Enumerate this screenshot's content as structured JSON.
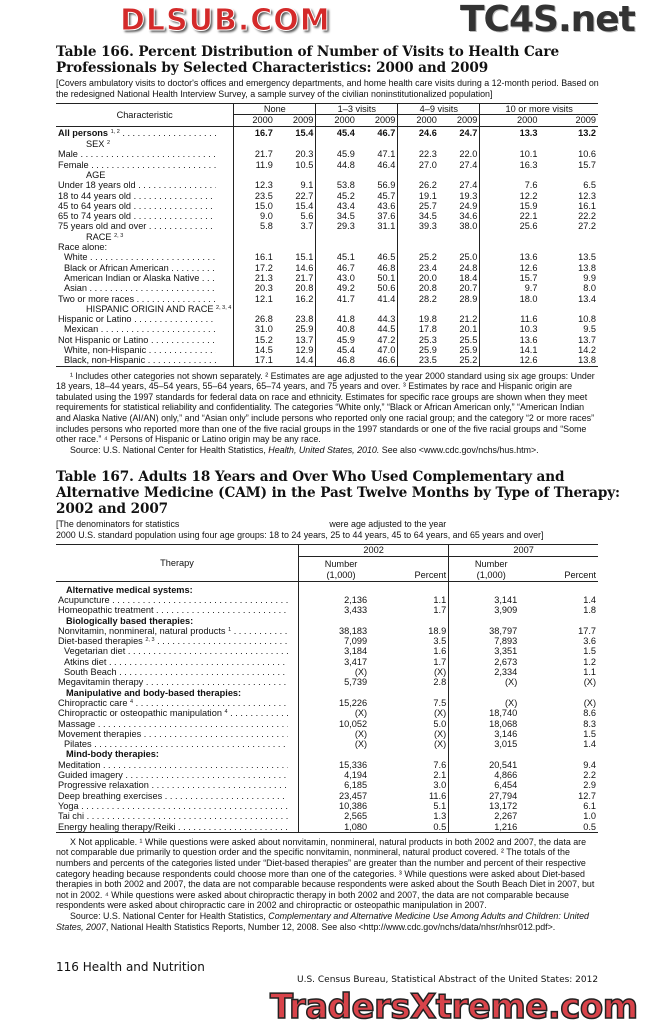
{
  "watermarks": {
    "top": "TC4S.net",
    "middle": "DLSUB.COM",
    "bottom": "TradersXtreme.com"
  },
  "table166": {
    "title_line1": "Table 166. Percent Distribution of Number of Visits to Health Care",
    "title_line2": "Professionals by Selected Characteristics: 2000 and 2009",
    "intro": "[Covers ambulatory visits to doctor's offices and emergency departments, and home health care visits during a 12-month period. Based on the redesigned National Health Interview Survey, a sample survey of the civilian noninstitutionalized population]",
    "header": {
      "characteristic": "Characteristic",
      "groups": [
        "None",
        "1–3 visits",
        "4–9 visits",
        "10 or more visits"
      ],
      "years": [
        "2000",
        "2009"
      ]
    },
    "rows": [
      {
        "label": "All persons",
        "sup": "1, 2",
        "bold": true,
        "values": [
          "16.7",
          "15.4",
          "45.4",
          "46.7",
          "24.6",
          "24.7",
          "13.3",
          "13.2"
        ]
      },
      {
        "section": "SEX",
        "sup": "2"
      },
      {
        "label": "Male",
        "values": [
          "21.7",
          "20.3",
          "45.9",
          "47.1",
          "22.3",
          "22.0",
          "10.1",
          "10.6"
        ]
      },
      {
        "label": "Female",
        "values": [
          "11.9",
          "10.5",
          "44.8",
          "46.4",
          "27.0",
          "27.4",
          "16.3",
          "15.7"
        ]
      },
      {
        "section": "AGE"
      },
      {
        "label": "Under 18 years old",
        "values": [
          "12.3",
          "9.1",
          "53.8",
          "56.9",
          "26.2",
          "27.4",
          "7.6",
          "6.5"
        ]
      },
      {
        "label": "18 to 44 years old",
        "values": [
          "23.5",
          "22.7",
          "45.2",
          "45.7",
          "19.1",
          "19.3",
          "12.2",
          "12.3"
        ]
      },
      {
        "label": "45 to 64 years old",
        "values": [
          "15.0",
          "15.4",
          "43.4",
          "43.6",
          "25.7",
          "24.9",
          "15.9",
          "16.1"
        ]
      },
      {
        "label": "65 to 74 years old",
        "values": [
          "9.0",
          "5.6",
          "34.5",
          "37.6",
          "34.5",
          "34.6",
          "22.1",
          "22.2"
        ]
      },
      {
        "label": "75 years old and over",
        "values": [
          "5.8",
          "3.7",
          "29.3",
          "31.1",
          "39.3",
          "38.0",
          "25.6",
          "27.2"
        ]
      },
      {
        "section": "RACE",
        "sup": "2, 3"
      },
      {
        "label": "Race alone:",
        "nodots": true
      },
      {
        "label": "White",
        "indent": true,
        "values": [
          "16.1",
          "15.1",
          "45.1",
          "46.5",
          "25.2",
          "25.0",
          "13.6",
          "13.5"
        ]
      },
      {
        "label": "Black or African American",
        "indent": true,
        "values": [
          "17.2",
          "14.6",
          "46.7",
          "46.8",
          "23.4",
          "24.8",
          "12.6",
          "13.8"
        ]
      },
      {
        "label": "American Indian or Alaska Native",
        "indent": true,
        "values": [
          "21.3",
          "21.7",
          "43.0",
          "50.1",
          "20.0",
          "18.4",
          "15.7",
          "9.9"
        ]
      },
      {
        "label": "Asian",
        "indent": true,
        "values": [
          "20.3",
          "20.8",
          "49.2",
          "50.6",
          "20.8",
          "20.7",
          "9.7",
          "8.0"
        ]
      },
      {
        "label": "Two or more races",
        "values": [
          "12.1",
          "16.2",
          "41.7",
          "41.4",
          "28.2",
          "28.9",
          "18.0",
          "13.4"
        ]
      },
      {
        "section": "HISPANIC ORIGIN AND RACE",
        "sup": "2, 3, 4"
      },
      {
        "label": "Hispanic or Latino",
        "values": [
          "26.8",
          "23.8",
          "41.8",
          "44.3",
          "19.8",
          "21.2",
          "11.6",
          "10.8"
        ]
      },
      {
        "label": "Mexican",
        "indent": true,
        "values": [
          "31.0",
          "25.9",
          "40.8",
          "44.5",
          "17.8",
          "20.1",
          "10.3",
          "9.5"
        ]
      },
      {
        "label": "Not Hispanic or Latino",
        "values": [
          "15.2",
          "13.7",
          "45.9",
          "47.2",
          "25.3",
          "25.5",
          "13.6",
          "13.7"
        ]
      },
      {
        "label": "White, non-Hispanic",
        "indent": true,
        "values": [
          "14.5",
          "12.9",
          "45.4",
          "47.0",
          "25.9",
          "25.9",
          "14.1",
          "14.2"
        ]
      },
      {
        "label": "Black, non-Hispanic",
        "indent": true,
        "values": [
          "17.1",
          "14.4",
          "46.8",
          "46.6",
          "23.5",
          "25.2",
          "12.6",
          "13.8"
        ]
      }
    ],
    "footnotes": "¹ Includes other categories not shown separately. ² Estimates are age adjusted to the year 2000 standard using six age groups: Under 18 years, 18–44 years, 45–54 years, 55–64 years, 65–74 years, and 75 years and over. ³ Estimates by race and Hispanic origin are tabulated using the 1997 standards for federal data on race and ethnicity. Estimates for specific race groups are shown when they meet requirements for statistical reliability and confidentiality. The categories “White only,” “Black or African American only,” “American Indian and Alaska Native (AI/AN) only,” and “Asian only” include persons who reported only one racial group; and the category “2 or more races” includes persons who reported more than one of the five racial groups in the 1997 standards or one of the five racial groups and “Some other race.” ⁴ Persons of Hispanic or Latino origin may be any race.",
    "source_prefix": "Source: U.S. National Center for Health Statistics, ",
    "source_italic": "Health, United States, 2010.",
    "source_suffix": " See also <www.cdc.gov/nchs/hus.htm>."
  },
  "table167": {
    "title_line1": "Table 167. Adults 18 Years and Over Who Used Complementary and",
    "title_line2": "Alternative Medicine (CAM) in the Past Twelve Months by Type of Therapy:",
    "title_line3": "2002 and 2007",
    "intro_line1": "[The denominators for statistics",
    "intro_line1_end": "were age adjusted to the year",
    "intro_line2": "2000 U.S. standard population using four age groups: 18 to 24 years, 25 to 44 years, 45 to 64 years, and 65 years and over]",
    "header": {
      "therapy": "Therapy",
      "years": [
        "2002",
        "2007"
      ],
      "number": "Number",
      "number_unit": "(1,000)",
      "percent": "Percent"
    },
    "rows": [
      {
        "heading": "Alternative medical systems:"
      },
      {
        "label": "Acupuncture",
        "values": [
          "2,136",
          "1.1",
          "3,141",
          "1.4"
        ]
      },
      {
        "label": "Homeopathic treatment",
        "values": [
          "3,433",
          "1.7",
          "3,909",
          "1.8"
        ]
      },
      {
        "heading": "Biologically based therapies:"
      },
      {
        "label": "Nonvitamin, nonmineral, natural products",
        "sup": "1",
        "values": [
          "38,183",
          "18.9",
          "38,797",
          "17.7"
        ]
      },
      {
        "label": "Diet-based therapies",
        "sup": "2, 3",
        "values": [
          "7,099",
          "3.5",
          "7,893",
          "3.6"
        ]
      },
      {
        "label": "Vegetarian diet",
        "indent": true,
        "values": [
          "3,184",
          "1.6",
          "3,351",
          "1.5"
        ]
      },
      {
        "label": "Atkins diet",
        "indent": true,
        "values": [
          "3,417",
          "1.7",
          "2,673",
          "1.2"
        ]
      },
      {
        "label": "South Beach",
        "indent": true,
        "values": [
          "(X)",
          "(X)",
          "2,334",
          "1.1"
        ]
      },
      {
        "label": "Megavitamin therapy",
        "values": [
          "5,739",
          "2.8",
          "(X)",
          "(X)"
        ]
      },
      {
        "heading": "Manipulative and body-based therapies:"
      },
      {
        "label": "Chiropractic care",
        "sup": "4",
        "values": [
          "15,226",
          "7.5",
          "(X)",
          "(X)"
        ]
      },
      {
        "label": "Chiropractic or osteopathic manipulation",
        "sup": "4",
        "values": [
          "(X)",
          "(X)",
          "18,740",
          "8.6"
        ]
      },
      {
        "label": "Massage",
        "values": [
          "10,052",
          "5.0",
          "18,068",
          "8.3"
        ]
      },
      {
        "label": "Movement therapies",
        "values": [
          "(X)",
          "(X)",
          "3,146",
          "1.5"
        ]
      },
      {
        "label": "Pilates",
        "indent": true,
        "values": [
          "(X)",
          "(X)",
          "3,015",
          "1.4"
        ]
      },
      {
        "heading": "Mind-body therapies:"
      },
      {
        "label": "Meditation",
        "values": [
          "15,336",
          "7.6",
          "20,541",
          "9.4"
        ]
      },
      {
        "label": "Guided imagery",
        "values": [
          "4,194",
          "2.1",
          "4,866",
          "2.2"
        ]
      },
      {
        "label": "Progressive relaxation",
        "values": [
          "6,185",
          "3.0",
          "6,454",
          "2.9"
        ]
      },
      {
        "label": "Deep breathing exercises",
        "values": [
          "23,457",
          "11.6",
          "27,794",
          "12.7"
        ]
      },
      {
        "label": "Yoga",
        "values": [
          "10,386",
          "5.1",
          "13,172",
          "6.1"
        ]
      },
      {
        "label": "Tai chi",
        "values": [
          "2,565",
          "1.3",
          "2,267",
          "1.0"
        ]
      },
      {
        "label": "Energy healing therapy/Reiki",
        "values": [
          "1,080",
          "0.5",
          "1,216",
          "0.5"
        ]
      }
    ],
    "footnotes": "X Not applicable. ¹ While questions were asked about nonvitamin, nonmineral, natural products in both 2002 and 2007, the data are not comparable due primarily to question order and the specific nonvitamin, nonmineral, natural product covered. ² The totals of the numbers and percents of the categories listed under “Diet-based therapies” are greater than the number and percent of their respective category heading because respondents could choose more than one of the categories. ³ While questions were asked about Diet-based therapies in both 2002 and 2007, the data are not comparable because respondents were asked about the South Beach Diet in 2007, but not in 2002. ⁴ While questions were asked about chiropractic therapy in both 2002 and 2007, the data are not comparable because respondents were asked about chiropractic care in 2002 and chiropractic or osteopathic manipulation in 2007.",
    "source_prefix": "Source: U.S. National Center for Health Statistics, ",
    "source_italic": "Complementary and Alternative Medicine Use Among Adults and Children: United States, 2007",
    "source_suffix": ", National Health Statistics Reports, Number 12, 2008. See also <http://www.cdc.gov/nchs/data/nhsr/nhsr012.pdf>."
  },
  "footer": {
    "page": "116  Health and Nutrition",
    "publication": "U.S. Census Bureau, Statistical Abstract of the United States: 2012"
  }
}
